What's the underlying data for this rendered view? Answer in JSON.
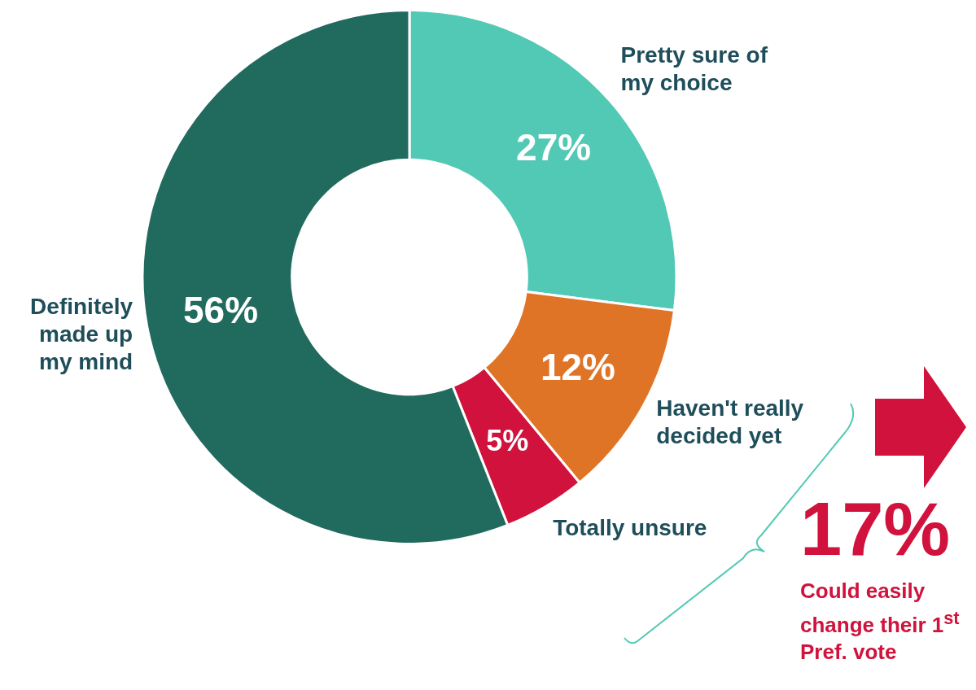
{
  "chart_data": {
    "type": "donut",
    "categories": [
      "Pretty sure of my choice",
      "Haven't really decided yet",
      "Totally unsure",
      "Definitely made up my mind"
    ],
    "values": [
      27,
      12,
      5,
      56
    ],
    "value_labels": [
      "27%",
      "12%",
      "5%",
      "56%"
    ],
    "colors": [
      "#52c9b4",
      "#e07426",
      "#d0123c",
      "#216b5e"
    ],
    "legend": false,
    "annotations": [
      "17%",
      "Could easily change their 1$^{st}$ Pref. vote"
    ]
  }
}
